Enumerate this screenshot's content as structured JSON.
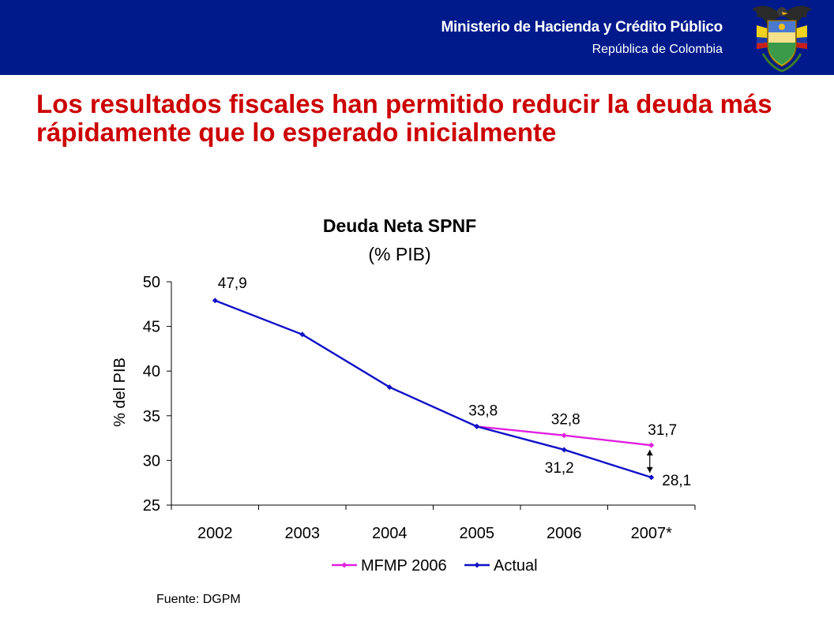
{
  "header": {
    "ministry": "Ministerio de Hacienda y Crédito Público",
    "country": "República de Colombia"
  },
  "slide_title": "Los resultados fiscales han permitido reducir la deuda más rápidamente que lo esperado inicialmente",
  "source": "Fuente: DGPM",
  "colors": {
    "header_bg": "#001a8c",
    "title": "#cc0000",
    "series_mfmp": "#e020e0",
    "series_actual": "#1010c8"
  },
  "chart_data": {
    "type": "line",
    "title": "Deuda Neta SPNF",
    "subtitle": "(% PIB)",
    "xlabel": "",
    "ylabel": "% del PIB",
    "ylim": [
      25,
      50
    ],
    "yticks": [
      25,
      30,
      35,
      40,
      45,
      50
    ],
    "categories": [
      "2002",
      "2003",
      "2004",
      "2005",
      "2006",
      "2007*"
    ],
    "legend_position": "bottom",
    "grid": false,
    "series": [
      {
        "name": "MFMP 2006",
        "color": "#e020e0",
        "values": [
          null,
          null,
          null,
          33.8,
          32.8,
          31.7
        ],
        "labels": [
          null,
          null,
          null,
          null,
          "32,8",
          "31,7"
        ]
      },
      {
        "name": "Actual",
        "color": "#1010c8",
        "values": [
          47.9,
          44.1,
          38.2,
          33.8,
          31.2,
          28.1
        ],
        "labels": [
          "47,9",
          null,
          null,
          "33,8",
          "31,2",
          "28,1"
        ]
      }
    ],
    "annotations": [
      {
        "type": "double-arrow",
        "category": "2007*",
        "from": 31.7,
        "to": 28.1
      }
    ]
  }
}
